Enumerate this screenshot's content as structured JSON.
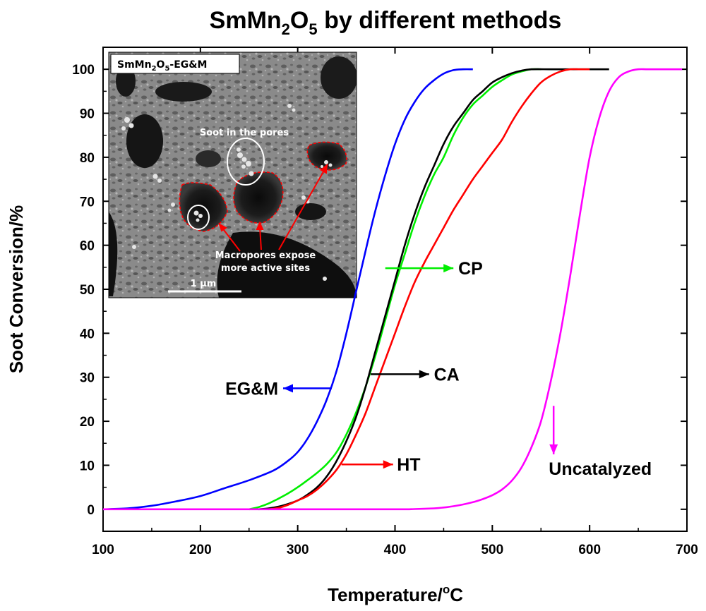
{
  "chart_data": {
    "type": "line",
    "title": {
      "main": "SmMn",
      "sub1": "2",
      "mid": "O",
      "sub2": "5",
      "tail": " by different methods"
    },
    "xlabel": {
      "main": "Temperature/",
      "sup": "o",
      "tail": "C"
    },
    "ylabel": "Soot Conversion/%",
    "xlim": [
      100,
      700
    ],
    "ylim": [
      -5,
      105
    ],
    "xticks": [
      100,
      200,
      300,
      400,
      500,
      600,
      700
    ],
    "yticks": [
      0,
      10,
      20,
      30,
      40,
      50,
      60,
      70,
      80,
      90,
      100
    ],
    "grid": false,
    "series": [
      {
        "name": "EG&M",
        "color": "#0000ff",
        "x": [
          100,
          125,
          150,
          175,
          200,
          225,
          250,
          275,
          290,
          300,
          310,
          320,
          330,
          340,
          350,
          360,
          370,
          380,
          390,
          400,
          410,
          420,
          430,
          440,
          450,
          460,
          470,
          480
        ],
        "y": [
          0,
          0.2,
          0.8,
          1.8,
          3,
          4.8,
          6.6,
          8.8,
          11,
          13,
          16,
          20,
          25,
          31.5,
          40,
          49.5,
          59,
          68,
          76,
          83,
          88.5,
          92.5,
          95.5,
          97.5,
          99,
          99.8,
          100,
          100
        ]
      },
      {
        "name": "CP",
        "color": "#00ee00",
        "x": [
          250,
          260,
          270,
          280,
          290,
          300,
          310,
          320,
          330,
          340,
          350,
          360,
          370,
          380,
          390,
          400,
          410,
          420,
          430,
          440,
          450,
          460,
          470,
          480,
          490,
          500,
          510,
          520,
          530,
          540,
          550
        ],
        "y": [
          0,
          0.5,
          1.3,
          2.4,
          3.6,
          5,
          6.6,
          8.3,
          10.3,
          13,
          17,
          22,
          28,
          35,
          43,
          51,
          58,
          65,
          71,
          76,
          80,
          85,
          89,
          92,
          94,
          96,
          97.5,
          98.8,
          99.5,
          100,
          100
        ]
      },
      {
        "name": "CA",
        "color": "#000000",
        "x": [
          260,
          270,
          280,
          290,
          300,
          310,
          320,
          330,
          340,
          350,
          360,
          370,
          380,
          390,
          400,
          410,
          420,
          430,
          440,
          450,
          460,
          470,
          480,
          490,
          500,
          510,
          520,
          530,
          540,
          560,
          580,
          600,
          620
        ],
        "y": [
          0,
          0.2,
          0.6,
          1.2,
          2,
          3.3,
          5,
          7.5,
          11,
          15.5,
          21,
          28,
          36,
          44,
          52,
          60,
          67,
          73,
          78,
          83,
          87,
          90,
          93,
          95,
          97,
          98.2,
          99.1,
          99.7,
          100,
          100,
          100,
          100,
          100
        ]
      },
      {
        "name": "HT",
        "color": "#ff0000",
        "x": [
          270,
          280,
          290,
          300,
          310,
          320,
          330,
          340,
          350,
          360,
          370,
          380,
          390,
          400,
          410,
          420,
          430,
          440,
          450,
          460,
          470,
          480,
          490,
          500,
          510,
          520,
          530,
          540,
          550,
          560,
          570,
          580,
          590,
          600
        ],
        "y": [
          0,
          0.3,
          1,
          2,
          3,
          4.5,
          6.5,
          9,
          12.5,
          17,
          22,
          28,
          34,
          40,
          46,
          51.5,
          56,
          60,
          64,
          68,
          71.5,
          75,
          78,
          81,
          84,
          88,
          91.5,
          94.5,
          97,
          98.5,
          99.5,
          100,
          100,
          100
        ]
      },
      {
        "name": "Uncatalyzed",
        "color": "#ff00ff",
        "x": [
          100,
          200,
          300,
          400,
          420,
          440,
          450,
          460,
          470,
          480,
          490,
          500,
          510,
          520,
          530,
          540,
          550,
          560,
          570,
          580,
          590,
          600,
          610,
          620,
          630,
          640,
          650,
          660,
          680,
          695
        ],
        "y": [
          0,
          0,
          0,
          0,
          0.05,
          0.2,
          0.4,
          0.7,
          1.1,
          1.6,
          2.3,
          3.2,
          4.5,
          6.5,
          9.5,
          14,
          20,
          29,
          40,
          53,
          67,
          80,
          89,
          95,
          98.2,
          99.5,
          100,
          100,
          100,
          100
        ]
      }
    ],
    "annotations": [
      {
        "label": "CP",
        "color": "#00ee00",
        "from": [
          390,
          54.8
        ],
        "to": [
          460,
          54.8
        ],
        "text_at": [
          465,
          54.8
        ]
      },
      {
        "label": "CA",
        "color": "#000000",
        "from": [
          375,
          30.7
        ],
        "to": [
          435,
          30.7
        ],
        "text_at": [
          440,
          30.7
        ]
      },
      {
        "label": "EG&M",
        "color": "#0000ff",
        "from": [
          335,
          27.5
        ],
        "to": [
          285,
          27.5
        ],
        "text_at": [
          280,
          27.5
        ]
      },
      {
        "label": "HT",
        "color": "#ff0000",
        "from": [
          345,
          10.2
        ],
        "to": [
          398,
          10.2
        ],
        "text_at": [
          402,
          10.2
        ]
      },
      {
        "label": "Uncatalyzed",
        "color": "#ff00ff",
        "from": [
          563,
          23.5
        ],
        "to": [
          563,
          12.5
        ],
        "text_at": [
          558,
          9.3
        ]
      }
    ],
    "inset": {
      "title": {
        "main": "SmMn",
        "sub1": "2",
        "mid": "O",
        "sub2": "5",
        "tail": "-EG&M"
      },
      "labels": [
        "Soot in the pores",
        "Macropores expose",
        "more active sites"
      ],
      "scale_bar": "1 μm"
    }
  }
}
